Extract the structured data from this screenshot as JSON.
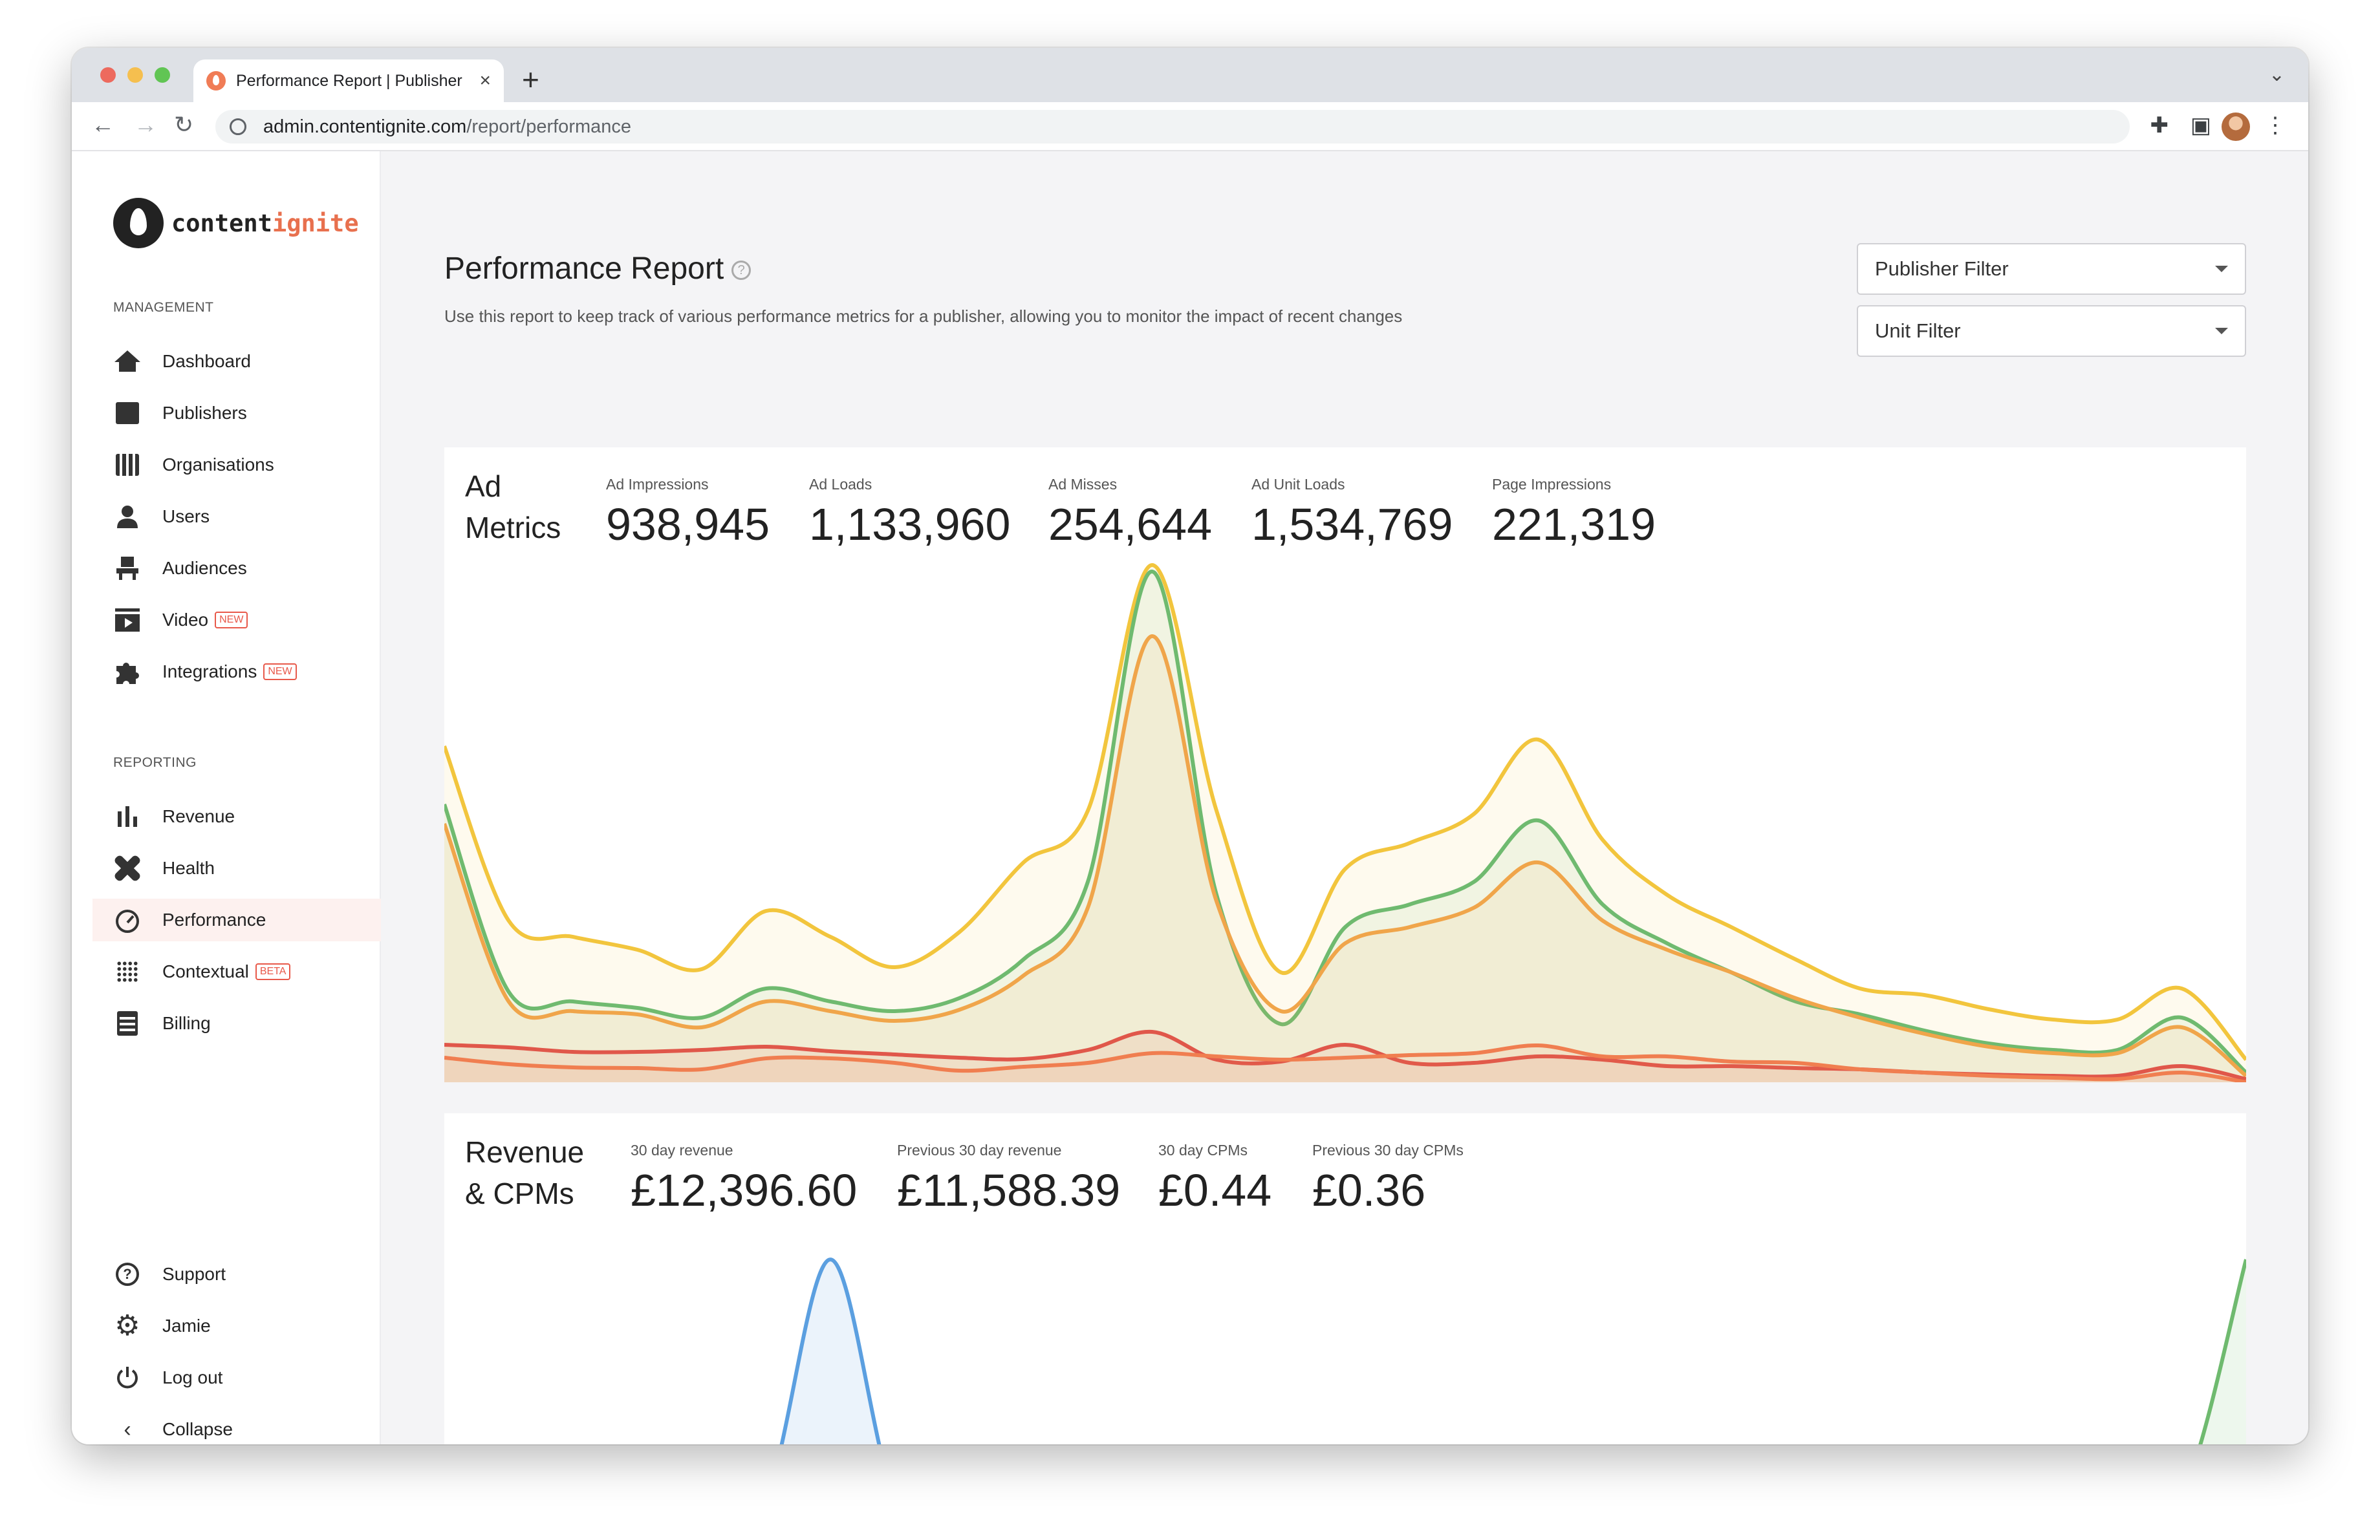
{
  "browser": {
    "tab_title": "Performance Report | Publisher",
    "url_host": "admin.contentignite.com",
    "url_path": "/report/performance"
  },
  "logo": {
    "word1": "content",
    "word2": "ignite"
  },
  "sidebar": {
    "management_heading": "MANAGEMENT",
    "management": [
      {
        "label": "Dashboard",
        "icon": "house-icon"
      },
      {
        "label": "Publishers",
        "icon": "id-card-icon"
      },
      {
        "label": "Organisations",
        "icon": "building-icon"
      },
      {
        "label": "Users",
        "icon": "user-icon"
      },
      {
        "label": "Audiences",
        "icon": "seat-icon"
      },
      {
        "label": "Video",
        "icon": "video-icon",
        "badge": "NEW"
      },
      {
        "label": "Integrations",
        "icon": "puzzle-icon",
        "badge": "NEW"
      }
    ],
    "reporting_heading": "REPORTING",
    "reporting": [
      {
        "label": "Revenue",
        "icon": "bar-chart-icon"
      },
      {
        "label": "Health",
        "icon": "bandage-icon"
      },
      {
        "label": "Performance",
        "icon": "speedometer-icon",
        "active": true
      },
      {
        "label": "Contextual",
        "icon": "dots-grid-icon",
        "badge": "BETA"
      },
      {
        "label": "Billing",
        "icon": "receipt-icon"
      }
    ],
    "footer": [
      {
        "label": "Support",
        "icon": "question-icon"
      },
      {
        "label": "Jamie",
        "icon": "gear-icon"
      },
      {
        "label": "Log out",
        "icon": "power-icon"
      },
      {
        "label": "Collapse",
        "icon": "chevron-left-icon"
      }
    ]
  },
  "page": {
    "title": "Performance Report",
    "subtitle": "Use this report to keep track of various performance metrics for a publisher, allowing you to monitor the impact of recent changes",
    "publisher_filter": "Publisher Filter",
    "unit_filter": "Unit Filter"
  },
  "ad_metrics": {
    "title_line1": "Ad",
    "title_line2": "Metrics",
    "metrics": [
      {
        "label": "Ad Impressions",
        "value": "938,945"
      },
      {
        "label": "Ad Loads",
        "value": "1,133,960"
      },
      {
        "label": "Ad Misses",
        "value": "254,644"
      },
      {
        "label": "Ad Unit Loads",
        "value": "1,534,769"
      },
      {
        "label": "Page Impressions",
        "value": "221,319"
      }
    ]
  },
  "revenue": {
    "title_line1": "Revenue",
    "title_line2": "& CPMs",
    "metrics": [
      {
        "label": "30 day revenue",
        "value": "£12,396.60"
      },
      {
        "label": "Previous 30 day revenue",
        "value": "£11,588.39"
      },
      {
        "label": "30 day CPMs",
        "value": "£0.44"
      },
      {
        "label": "Previous 30 day CPMs",
        "value": "£0.36"
      }
    ]
  },
  "chart_data": [
    {
      "type": "area",
      "x": [
        0,
        1,
        2,
        3,
        4,
        5,
        6,
        7,
        8,
        9,
        10,
        11,
        12,
        13,
        14,
        15,
        16,
        17,
        18,
        19,
        20,
        21,
        22,
        23,
        24,
        25,
        26,
        27,
        28
      ],
      "series": [
        {
          "color": "#f2c53d",
          "values": [
            520,
            250,
            225,
            205,
            175,
            265,
            225,
            178,
            232,
            340,
            420,
            800,
            420,
            170,
            330,
            370,
            415,
            530,
            375,
            290,
            240,
            190,
            145,
            135,
            113,
            97,
            97,
            145,
            35
          ]
        },
        {
          "color": "#6fba6f",
          "values": [
            430,
            140,
            125,
            115,
            100,
            145,
            125,
            110,
            130,
            190,
            310,
            790,
            290,
            90,
            240,
            275,
            310,
            405,
            275,
            215,
            170,
            125,
            105,
            80,
            60,
            50,
            50,
            100,
            15
          ]
        },
        {
          "color": "#f0a54a",
          "values": [
            400,
            125,
            110,
            105,
            85,
            125,
            110,
            95,
            112,
            165,
            270,
            690,
            280,
            110,
            215,
            240,
            270,
            340,
            250,
            205,
            170,
            130,
            100,
            75,
            55,
            45,
            45,
            85,
            10
          ]
        },
        {
          "color": "#e0574a",
          "values": [
            58,
            54,
            47,
            47,
            50,
            55,
            48,
            43,
            38,
            36,
            50,
            78,
            35,
            32,
            58,
            30,
            30,
            40,
            35,
            25,
            25,
            22,
            20,
            15,
            12,
            10,
            10,
            25,
            5
          ]
        },
        {
          "color": "#f07e50",
          "values": [
            38,
            28,
            23,
            22,
            20,
            37,
            37,
            30,
            18,
            24,
            30,
            45,
            40,
            35,
            38,
            42,
            45,
            57,
            40,
            40,
            32,
            30,
            20,
            15,
            10,
            7,
            5,
            15,
            0
          ]
        }
      ],
      "ylim": [
        0,
        820
      ]
    },
    {
      "type": "area",
      "series": [
        {
          "color": "#5b9fe0",
          "values": [
            0,
            0,
            0,
            0,
            0,
            0,
            260,
            0,
            0,
            0,
            0,
            0,
            0,
            0,
            0,
            0,
            0,
            0,
            0,
            0,
            0,
            0,
            0,
            0,
            0,
            0,
            0,
            0,
            0
          ]
        },
        {
          "color": "#5dbfd6",
          "values": [
            0,
            0,
            0,
            0,
            0,
            0,
            0,
            0,
            0,
            0,
            0,
            0,
            0,
            0,
            0,
            0,
            0,
            0,
            0,
            0,
            0,
            0,
            0,
            0,
            0,
            0,
            0,
            0,
            0
          ]
        },
        {
          "color": "#6fba6f",
          "values": [
            5,
            0,
            0,
            0,
            0,
            0,
            0,
            0,
            0,
            0,
            0,
            0,
            0,
            0,
            0,
            0,
            0,
            0,
            0,
            0,
            0,
            0,
            0,
            0,
            0,
            0,
            0,
            0,
            260
          ]
        }
      ]
    }
  ]
}
